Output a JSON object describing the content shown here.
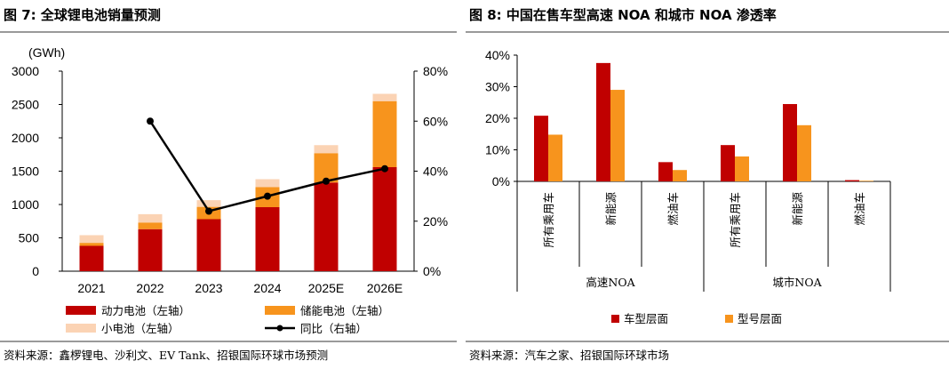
{
  "left": {
    "title": "图 7: 全球锂电池销量预测",
    "source": "资料来源：鑫椤锂电、沙利文、EV Tank、招银国际环球市场预测"
  },
  "right": {
    "title": "图 8: 中国在售车型高速 NOA 和城市 NOA 渗透率",
    "source": "资料来源：汽车之家、招银国际环球市场"
  },
  "chart_data": [
    {
      "type": "bar",
      "stacked": true,
      "unit_label": "(GWh)",
      "categories": [
        "2021",
        "2022",
        "2023",
        "2024",
        "2025E",
        "2026E"
      ],
      "series": [
        {
          "name": "动力电池（左轴）",
          "axis": "left",
          "color": "#C00000",
          "values": [
            380,
            630,
            780,
            960,
            1330,
            1560
          ]
        },
        {
          "name": "储能电池（左轴）",
          "axis": "left",
          "color": "#F7941D",
          "values": [
            45,
            100,
            185,
            300,
            440,
            990
          ]
        },
        {
          "name": "小电池（左轴）",
          "axis": "left",
          "color": "#FBD3B4",
          "values": [
            115,
            125,
            100,
            120,
            120,
            110
          ]
        },
        {
          "name": "同比（右轴）",
          "axis": "right",
          "type": "line",
          "color": "#000000",
          "values": [
            null,
            60,
            24,
            30,
            36,
            41
          ]
        }
      ],
      "y_left": {
        "ticks": [
          "0",
          "500",
          "1000",
          "1500",
          "2000",
          "2500",
          "3000"
        ],
        "range": [
          0,
          3000
        ]
      },
      "y_right": {
        "ticks": [
          "0%",
          "20%",
          "40%",
          "60%",
          "80%"
        ],
        "range": [
          0,
          80
        ]
      },
      "legend_position": "bottom",
      "grid": false
    },
    {
      "type": "bar",
      "y_range": [
        0,
        40
      ],
      "y_ticks": [
        "0%",
        "10%",
        "20%",
        "30%",
        "40%"
      ],
      "groups": [
        {
          "name": "高速NOA",
          "categories": [
            "所有乘用车",
            "新能源",
            "燃油车"
          ]
        },
        {
          "name": "城市NOA",
          "categories": [
            "所有乘用车",
            "新能源",
            "燃油车"
          ]
        }
      ],
      "series": [
        {
          "name": "车型层面",
          "color": "#C00000",
          "values": [
            20.8,
            37.5,
            6.1,
            11.5,
            24.5,
            0.4
          ]
        },
        {
          "name": "型号层面",
          "color": "#F7941D",
          "values": [
            14.8,
            29.0,
            3.6,
            7.9,
            17.8,
            0.2
          ]
        }
      ],
      "legend_position": "bottom",
      "grid": false
    }
  ]
}
